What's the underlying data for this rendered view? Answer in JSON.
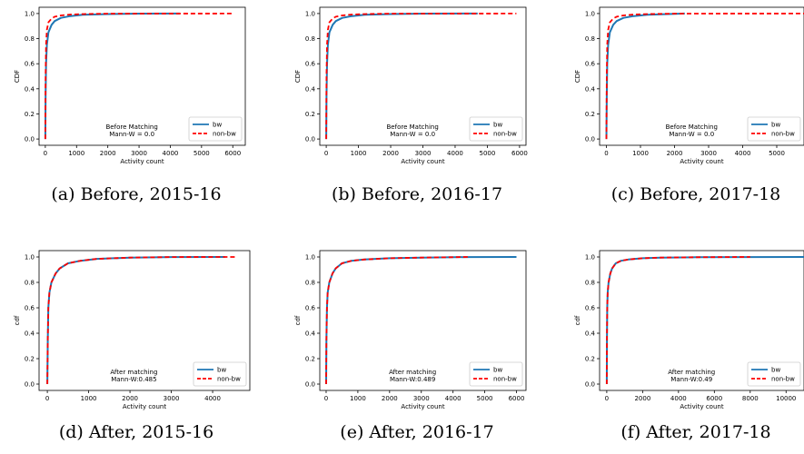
{
  "chart_data": [
    {
      "type": "line",
      "caption": "(a) Before, 2015-16",
      "xlabel": "Activity count",
      "ylabel": "CDF",
      "xlim": [
        -200,
        6400
      ],
      "ylim": [
        -0.05,
        1.05
      ],
      "xticks": [
        0,
        1000,
        2000,
        3000,
        4000,
        5000,
        6000
      ],
      "yticks": [
        0.0,
        0.2,
        0.4,
        0.6,
        0.8,
        1.0
      ],
      "annotation": [
        "Before Matching",
        "Mann-W = 0.0"
      ],
      "legend_position": "lower right",
      "series": [
        {
          "name": "bw",
          "color": "#1f77b4",
          "style": "solid",
          "x": [
            0,
            10,
            25,
            50,
            100,
            200,
            300,
            500,
            800,
            1200,
            2000,
            3000,
            4300
          ],
          "y": [
            0.0,
            0.35,
            0.6,
            0.75,
            0.85,
            0.91,
            0.94,
            0.965,
            0.98,
            0.99,
            0.996,
            0.999,
            1.0
          ]
        },
        {
          "name": "non-bw",
          "color": "#ff0000",
          "style": "dashed",
          "x": [
            0,
            10,
            25,
            50,
            100,
            200,
            300,
            500,
            800,
            1200,
            2000,
            6000
          ],
          "y": [
            0.0,
            0.5,
            0.75,
            0.87,
            0.93,
            0.96,
            0.975,
            0.985,
            0.992,
            0.996,
            0.999,
            1.0
          ]
        }
      ]
    },
    {
      "type": "line",
      "caption": "(b) Before, 2016-17",
      "xlabel": "Activity count",
      "ylabel": "CDF",
      "xlim": [
        -200,
        6200
      ],
      "ylim": [
        -0.05,
        1.05
      ],
      "xticks": [
        0,
        1000,
        2000,
        3000,
        4000,
        5000,
        6000
      ],
      "yticks": [
        0.0,
        0.2,
        0.4,
        0.6,
        0.8,
        1.0
      ],
      "annotation": [
        "Before Matching",
        "Mann-W = 0.0"
      ],
      "legend_position": "lower right",
      "series": [
        {
          "name": "bw",
          "color": "#1f77b4",
          "style": "solid",
          "x": [
            0,
            10,
            25,
            50,
            100,
            200,
            300,
            500,
            800,
            1200,
            2000,
            3000,
            4700
          ],
          "y": [
            0.0,
            0.35,
            0.6,
            0.75,
            0.85,
            0.91,
            0.94,
            0.965,
            0.98,
            0.99,
            0.996,
            0.999,
            1.0
          ]
        },
        {
          "name": "non-bw",
          "color": "#ff0000",
          "style": "dashed",
          "x": [
            0,
            10,
            25,
            50,
            100,
            200,
            300,
            500,
            800,
            1200,
            2000,
            5900
          ],
          "y": [
            0.0,
            0.5,
            0.75,
            0.87,
            0.93,
            0.96,
            0.975,
            0.985,
            0.992,
            0.996,
            0.999,
            1.0
          ]
        }
      ]
    },
    {
      "type": "line",
      "caption": "(c) Before, 2017-18",
      "xlabel": "Activity count",
      "ylabel": "CDF",
      "xlim": [
        -200,
        5800
      ],
      "ylim": [
        -0.05,
        1.05
      ],
      "xticks": [
        0,
        1000,
        2000,
        3000,
        4000,
        5000
      ],
      "yticks": [
        0.0,
        0.2,
        0.4,
        0.6,
        0.8,
        1.0
      ],
      "annotation": [
        "Before Matching",
        "Mann-W = 0.0"
      ],
      "legend_position": "lower right",
      "series": [
        {
          "name": "bw",
          "color": "#1f77b4",
          "style": "solid",
          "x": [
            0,
            10,
            25,
            50,
            100,
            200,
            300,
            500,
            800,
            1200,
            2300
          ],
          "y": [
            0.0,
            0.35,
            0.6,
            0.75,
            0.85,
            0.91,
            0.94,
            0.965,
            0.98,
            0.99,
            1.0
          ]
        },
        {
          "name": "non-bw",
          "color": "#ff0000",
          "style": "dashed",
          "x": [
            0,
            10,
            25,
            50,
            100,
            200,
            300,
            500,
            800,
            1200,
            2000,
            5800
          ],
          "y": [
            0.0,
            0.5,
            0.75,
            0.87,
            0.93,
            0.96,
            0.975,
            0.985,
            0.992,
            0.996,
            0.999,
            1.0
          ]
        }
      ]
    },
    {
      "type": "line",
      "caption": "(d) After, 2015-16",
      "xlabel": "Activity count",
      "ylabel": "cdf",
      "xlim": [
        -200,
        4900
      ],
      "ylim": [
        -0.05,
        1.05
      ],
      "xticks": [
        0,
        1000,
        2000,
        3000,
        4000
      ],
      "yticks": [
        0.0,
        0.2,
        0.4,
        0.6,
        0.8,
        1.0
      ],
      "annotation": [
        "After matching",
        "Mann-W:0.485"
      ],
      "legend_position": "lower right",
      "series": [
        {
          "name": "bw",
          "color": "#1f77b4",
          "style": "solid",
          "x": [
            0,
            10,
            25,
            50,
            100,
            200,
            300,
            500,
            800,
            1200,
            2000,
            3000,
            4300
          ],
          "y": [
            0.0,
            0.35,
            0.6,
            0.72,
            0.8,
            0.87,
            0.91,
            0.95,
            0.97,
            0.985,
            0.995,
            0.999,
            1.0
          ]
        },
        {
          "name": "non-bw",
          "color": "#ff0000",
          "style": "dashed",
          "x": [
            0,
            10,
            25,
            50,
            100,
            200,
            300,
            500,
            800,
            1200,
            2000,
            3000,
            4600
          ],
          "y": [
            0.0,
            0.35,
            0.6,
            0.72,
            0.8,
            0.87,
            0.91,
            0.95,
            0.97,
            0.985,
            0.995,
            0.999,
            1.0
          ]
        }
      ]
    },
    {
      "type": "line",
      "caption": "(e) After, 2016-17",
      "xlabel": "Activity count",
      "ylabel": "cdf",
      "xlim": [
        -200,
        6300
      ],
      "ylim": [
        -0.05,
        1.05
      ],
      "xticks": [
        0,
        1000,
        2000,
        3000,
        4000,
        5000,
        6000
      ],
      "yticks": [
        0.0,
        0.2,
        0.4,
        0.6,
        0.8,
        1.0
      ],
      "annotation": [
        "After matching",
        "Mann-W:0.489"
      ],
      "legend_position": "lower right",
      "series": [
        {
          "name": "bw",
          "color": "#1f77b4",
          "style": "solid",
          "x": [
            0,
            10,
            25,
            50,
            100,
            200,
            300,
            500,
            800,
            1200,
            2000,
            3000,
            4500,
            6000
          ],
          "y": [
            0.0,
            0.35,
            0.6,
            0.72,
            0.8,
            0.87,
            0.91,
            0.95,
            0.97,
            0.98,
            0.99,
            0.995,
            0.999,
            1.0
          ]
        },
        {
          "name": "non-bw",
          "color": "#ff0000",
          "style": "dashed",
          "x": [
            0,
            10,
            25,
            50,
            100,
            200,
            300,
            500,
            800,
            1200,
            2000,
            3000,
            4500
          ],
          "y": [
            0.0,
            0.35,
            0.6,
            0.72,
            0.8,
            0.87,
            0.91,
            0.95,
            0.97,
            0.98,
            0.99,
            0.995,
            1.0
          ]
        }
      ]
    },
    {
      "type": "line",
      "caption": "(f) After, 2017-18",
      "xlabel": "Activity count",
      "ylabel": "cdf",
      "xlim": [
        -400,
        11000
      ],
      "ylim": [
        -0.05,
        1.05
      ],
      "xticks": [
        0,
        2000,
        4000,
        6000,
        8000,
        10000
      ],
      "yticks": [
        0.0,
        0.2,
        0.4,
        0.6,
        0.8,
        1.0
      ],
      "annotation": [
        "After matching",
        "Mann-W:0.49"
      ],
      "legend_position": "lower right",
      "series": [
        {
          "name": "bw",
          "color": "#1f77b4",
          "style": "solid",
          "x": [
            0,
            10,
            25,
            50,
            100,
            200,
            300,
            500,
            800,
            1200,
            2000,
            3000,
            5000,
            8000,
            11000
          ],
          "y": [
            0.0,
            0.35,
            0.6,
            0.72,
            0.8,
            0.87,
            0.91,
            0.95,
            0.97,
            0.98,
            0.99,
            0.995,
            0.998,
            0.999,
            1.0
          ]
        },
        {
          "name": "non-bw",
          "color": "#ff0000",
          "style": "dashed",
          "x": [
            0,
            10,
            25,
            50,
            100,
            200,
            300,
            500,
            800,
            1200,
            2000,
            3000,
            5000,
            8000
          ],
          "y": [
            0.0,
            0.35,
            0.6,
            0.72,
            0.8,
            0.87,
            0.91,
            0.95,
            0.97,
            0.98,
            0.99,
            0.995,
            0.998,
            1.0
          ]
        }
      ]
    }
  ]
}
